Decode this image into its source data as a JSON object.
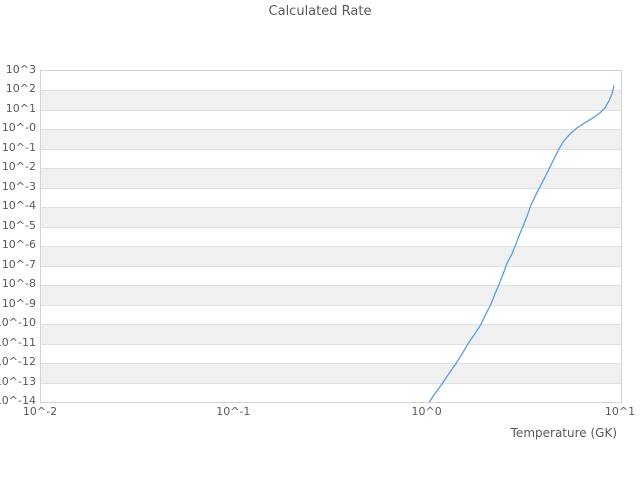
{
  "title": "Calculated Rate",
  "axes": {
    "x": {
      "label": "Temperature (GK)",
      "ticks": [
        "10^-2",
        "10^-1",
        "10^0",
        "10^1"
      ],
      "log_min": -2,
      "log_max": 1
    },
    "y": {
      "ticks": [
        "10^3",
        "10^2",
        "10^1",
        "10^-0",
        "10^-1",
        "10^-2",
        "10^-3",
        "10^-4",
        "10^-5",
        "10^-6",
        "10^-7",
        "10^-8",
        "10^-9",
        "10^-10",
        "10^-11",
        "10^-12",
        "10^-13",
        "10^-14"
      ],
      "log_min": -14,
      "log_max": 3
    }
  },
  "colors": {
    "line": "#5b9de2",
    "band_grey": "#f0f0f0",
    "gridline": "#e0e0e0",
    "border": "#d4d4d4",
    "text": "#595959"
  },
  "chart_data": {
    "type": "line",
    "title": "Calculated Rate",
    "xlabel": "Temperature (GK)",
    "ylabel": "",
    "xscale": "log",
    "yscale": "log",
    "xlim": [
      0.01,
      10
    ],
    "ylim": [
      1e-14,
      1000.0
    ],
    "grid": "horizontal-bands",
    "legend": "none",
    "x_tick_labels": [
      "10^-2",
      "10^-1",
      "10^0",
      "10^1"
    ],
    "y_tick_labels": [
      "10^3",
      "10^2",
      "10^1",
      "10^-0",
      "10^-1",
      "10^-2",
      "10^-3",
      "10^-4",
      "10^-5",
      "10^-6",
      "10^-7",
      "10^-8",
      "10^-9",
      "10^-10",
      "10^-11",
      "10^-12",
      "10^-13",
      "10^-14"
    ],
    "series": [
      {
        "name": "calculated-rate",
        "x": [
          1.02,
          1.09,
          1.19,
          1.29,
          1.4,
          1.51,
          1.62,
          1.76,
          1.89,
          2.0,
          2.13,
          2.23,
          2.34,
          2.45,
          2.57,
          2.73,
          2.86,
          3.0,
          3.15,
          3.3,
          3.42,
          3.59,
          3.76,
          4.0,
          4.24,
          4.5,
          4.78,
          5.07,
          5.45,
          5.92,
          6.51,
          7.16,
          7.78,
          8.26,
          8.66,
          8.98,
          9.19
        ],
        "y": [
          1e-14,
          2.7e-14,
          8.9e-14,
          2.9e-13,
          9.4e-13,
          3.1e-12,
          1e-11,
          3.3e-11,
          1e-10,
          3.4e-10,
          1.1e-09,
          3.7e-09,
          1.1e-08,
          3.5e-08,
          1.3e-07,
          4.1e-07,
          1.3e-06,
          4.4e-06,
          1.4e-05,
          4.6e-05,
          0.00013,
          0.00035,
          0.00089,
          0.0029,
          0.0094,
          0.031,
          0.1,
          0.26,
          0.59,
          1.2,
          2.2,
          3.9,
          7.0,
          12.7,
          29,
          66,
          170
        ]
      }
    ]
  }
}
